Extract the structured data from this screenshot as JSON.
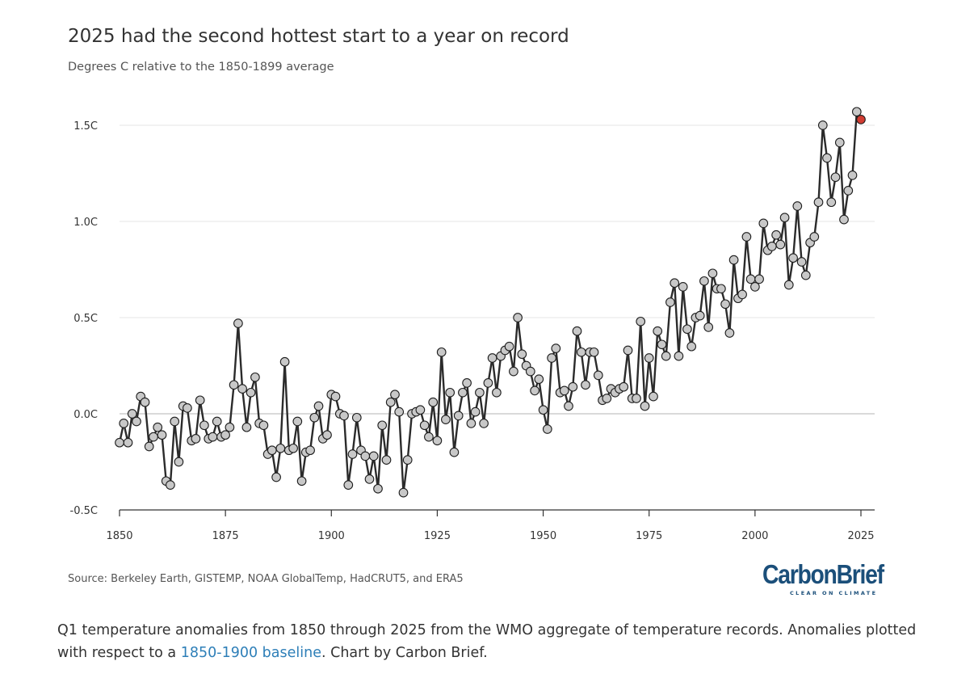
{
  "header": {
    "title": "2025 had the second hottest start to a year on record",
    "subtitle": "Degrees C relative to the 1850-1899 average"
  },
  "footer": {
    "source": "Source: Berkeley Earth, GISTEMP, NOAA GlobalTemp, HadCRUT5, and ERA5",
    "brand_name": "CarbonBrief",
    "brand_tagline": "CLEAR ON CLIMATE"
  },
  "caption": {
    "text_before": "Q1 temperature anomalies from 1850 through 2025 from the WMO aggregate of temperature records. Anomalies plotted with respect to a ",
    "link_text": "1850-1900 baseline",
    "text_after": ". Chart by Carbon Brief."
  },
  "colors": {
    "line": "#2b2b2b",
    "marker_fill": "#c8c8c8",
    "marker_stroke": "#1e1e1e",
    "highlight_fill": "#d23c32",
    "grid": "#e6e6e6",
    "zero_line": "#c4c4c4",
    "axis": "#333333",
    "brand": "#1b4f7a",
    "link": "#2e7fb8"
  },
  "chart_data": {
    "type": "line",
    "title": "2025 had the second hottest start to a year on record",
    "subtitle": "Degrees C relative to the 1850-1899 average",
    "xlabel": "",
    "ylabel": "",
    "xlim": [
      1850,
      2025
    ],
    "ylim": [
      -0.5,
      1.6
    ],
    "grid": true,
    "markers": true,
    "x_ticks": [
      {
        "value": 1850,
        "label": "1850"
      },
      {
        "value": 1875,
        "label": "1875"
      },
      {
        "value": 1900,
        "label": "1900"
      },
      {
        "value": 1925,
        "label": "1925"
      },
      {
        "value": 1950,
        "label": "1950"
      },
      {
        "value": 1975,
        "label": "1975"
      },
      {
        "value": 2000,
        "label": "2000"
      },
      {
        "value": 2025,
        "label": "2025"
      }
    ],
    "y_ticks": [
      {
        "value": -0.5,
        "label": "-0.5C"
      },
      {
        "value": 0.0,
        "label": "0.0C"
      },
      {
        "value": 0.5,
        "label": "0.5C"
      },
      {
        "value": 1.0,
        "label": "1.0C"
      },
      {
        "value": 1.5,
        "label": "1.5C"
      }
    ],
    "highlight_year": 2025,
    "x_start": 1850,
    "values": [
      -0.15,
      -0.05,
      -0.15,
      0.0,
      -0.04,
      0.09,
      0.06,
      -0.17,
      -0.12,
      -0.07,
      -0.11,
      -0.35,
      -0.37,
      -0.04,
      -0.25,
      0.04,
      0.03,
      -0.14,
      -0.13,
      0.07,
      -0.06,
      -0.13,
      -0.12,
      -0.04,
      -0.12,
      -0.11,
      -0.07,
      0.15,
      0.47,
      0.13,
      -0.07,
      0.11,
      0.19,
      -0.05,
      -0.06,
      -0.21,
      -0.19,
      -0.33,
      -0.18,
      0.27,
      -0.19,
      -0.18,
      -0.04,
      -0.35,
      -0.2,
      -0.19,
      -0.02,
      0.04,
      -0.13,
      -0.11,
      0.1,
      0.09,
      0.0,
      -0.01,
      -0.37,
      -0.21,
      -0.02,
      -0.19,
      -0.22,
      -0.34,
      -0.22,
      -0.39,
      -0.06,
      -0.24,
      0.06,
      0.1,
      0.01,
      -0.41,
      -0.24,
      0.0,
      0.01,
      0.02,
      -0.06,
      -0.12,
      0.06,
      -0.14,
      0.32,
      -0.03,
      0.11,
      -0.2,
      -0.01,
      0.11,
      0.16,
      -0.05,
      0.01,
      0.11,
      -0.05,
      0.16,
      0.29,
      0.11,
      0.3,
      0.33,
      0.35,
      0.22,
      0.5,
      0.31,
      0.25,
      0.22,
      0.12,
      0.18,
      0.02,
      -0.08,
      0.29,
      0.34,
      0.11,
      0.12,
      0.04,
      0.14,
      0.43,
      0.32,
      0.15,
      0.32,
      0.32,
      0.2,
      0.07,
      0.08,
      0.13,
      0.11,
      0.13,
      0.14,
      0.33,
      0.08,
      0.08,
      0.48,
      0.04,
      0.29,
      0.09,
      0.43,
      0.36,
      0.3,
      0.58,
      0.68,
      0.3,
      0.66,
      0.44,
      0.35,
      0.5,
      0.51,
      0.69,
      0.45,
      0.73,
      0.65,
      0.65,
      0.57,
      0.42,
      0.8,
      0.6,
      0.62,
      0.92,
      0.7,
      0.66,
      0.7,
      0.99,
      0.85,
      0.87,
      0.93,
      0.88,
      1.02,
      0.67,
      0.81,
      1.08,
      0.79,
      0.72,
      0.89,
      0.92,
      1.1,
      1.5,
      1.33,
      1.1,
      1.23,
      1.41,
      1.01,
      1.16,
      1.24,
      1.57,
      1.53
    ]
  }
}
